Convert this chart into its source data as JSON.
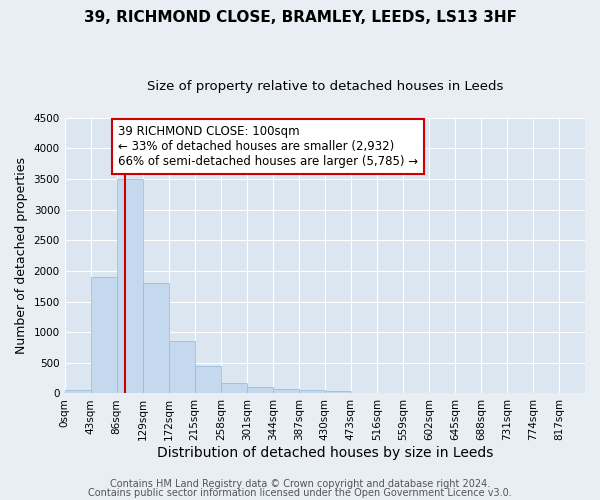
{
  "title": "39, RICHMOND CLOSE, BRAMLEY, LEEDS, LS13 3HF",
  "subtitle": "Size of property relative to detached houses in Leeds",
  "xlabel": "Distribution of detached houses by size in Leeds",
  "ylabel": "Number of detached properties",
  "property_size": 100,
  "bin_width": 43,
  "bin_starts": [
    0,
    43,
    86,
    129,
    172,
    215,
    258,
    301,
    344,
    387,
    430,
    473,
    516,
    559,
    602,
    645,
    688,
    731,
    774,
    817
  ],
  "bar_heights": [
    50,
    1900,
    3500,
    1800,
    850,
    450,
    170,
    100,
    70,
    50,
    35,
    10,
    0,
    0,
    0,
    0,
    0,
    0,
    0,
    0
  ],
  "bar_color": "#c5d9ee",
  "bar_edge_color": "#92b8d8",
  "red_line_color": "#cc0000",
  "annotation_line1": "39 RICHMOND CLOSE: 100sqm",
  "annotation_line2": "← 33% of detached houses are smaller (2,932)",
  "annotation_line3": "66% of semi-detached houses are larger (5,785) →",
  "annotation_box_color": "#ffffff",
  "annotation_box_edge": "#cc0000",
  "ylim": [
    0,
    4500
  ],
  "yticks": [
    0,
    500,
    1000,
    1500,
    2000,
    2500,
    3000,
    3500,
    4000,
    4500
  ],
  "footnote1": "Contains HM Land Registry data © Crown copyright and database right 2024.",
  "footnote2": "Contains public sector information licensed under the Open Government Licence v3.0.",
  "background_color": "#e8eef4",
  "plot_bg_color": "#dce6f0",
  "grid_color": "#ffffff",
  "title_fontsize": 11,
  "subtitle_fontsize": 9.5,
  "xlabel_fontsize": 10,
  "ylabel_fontsize": 9,
  "tick_fontsize": 7.5,
  "annotation_fontsize": 8.5,
  "footnote_fontsize": 7
}
